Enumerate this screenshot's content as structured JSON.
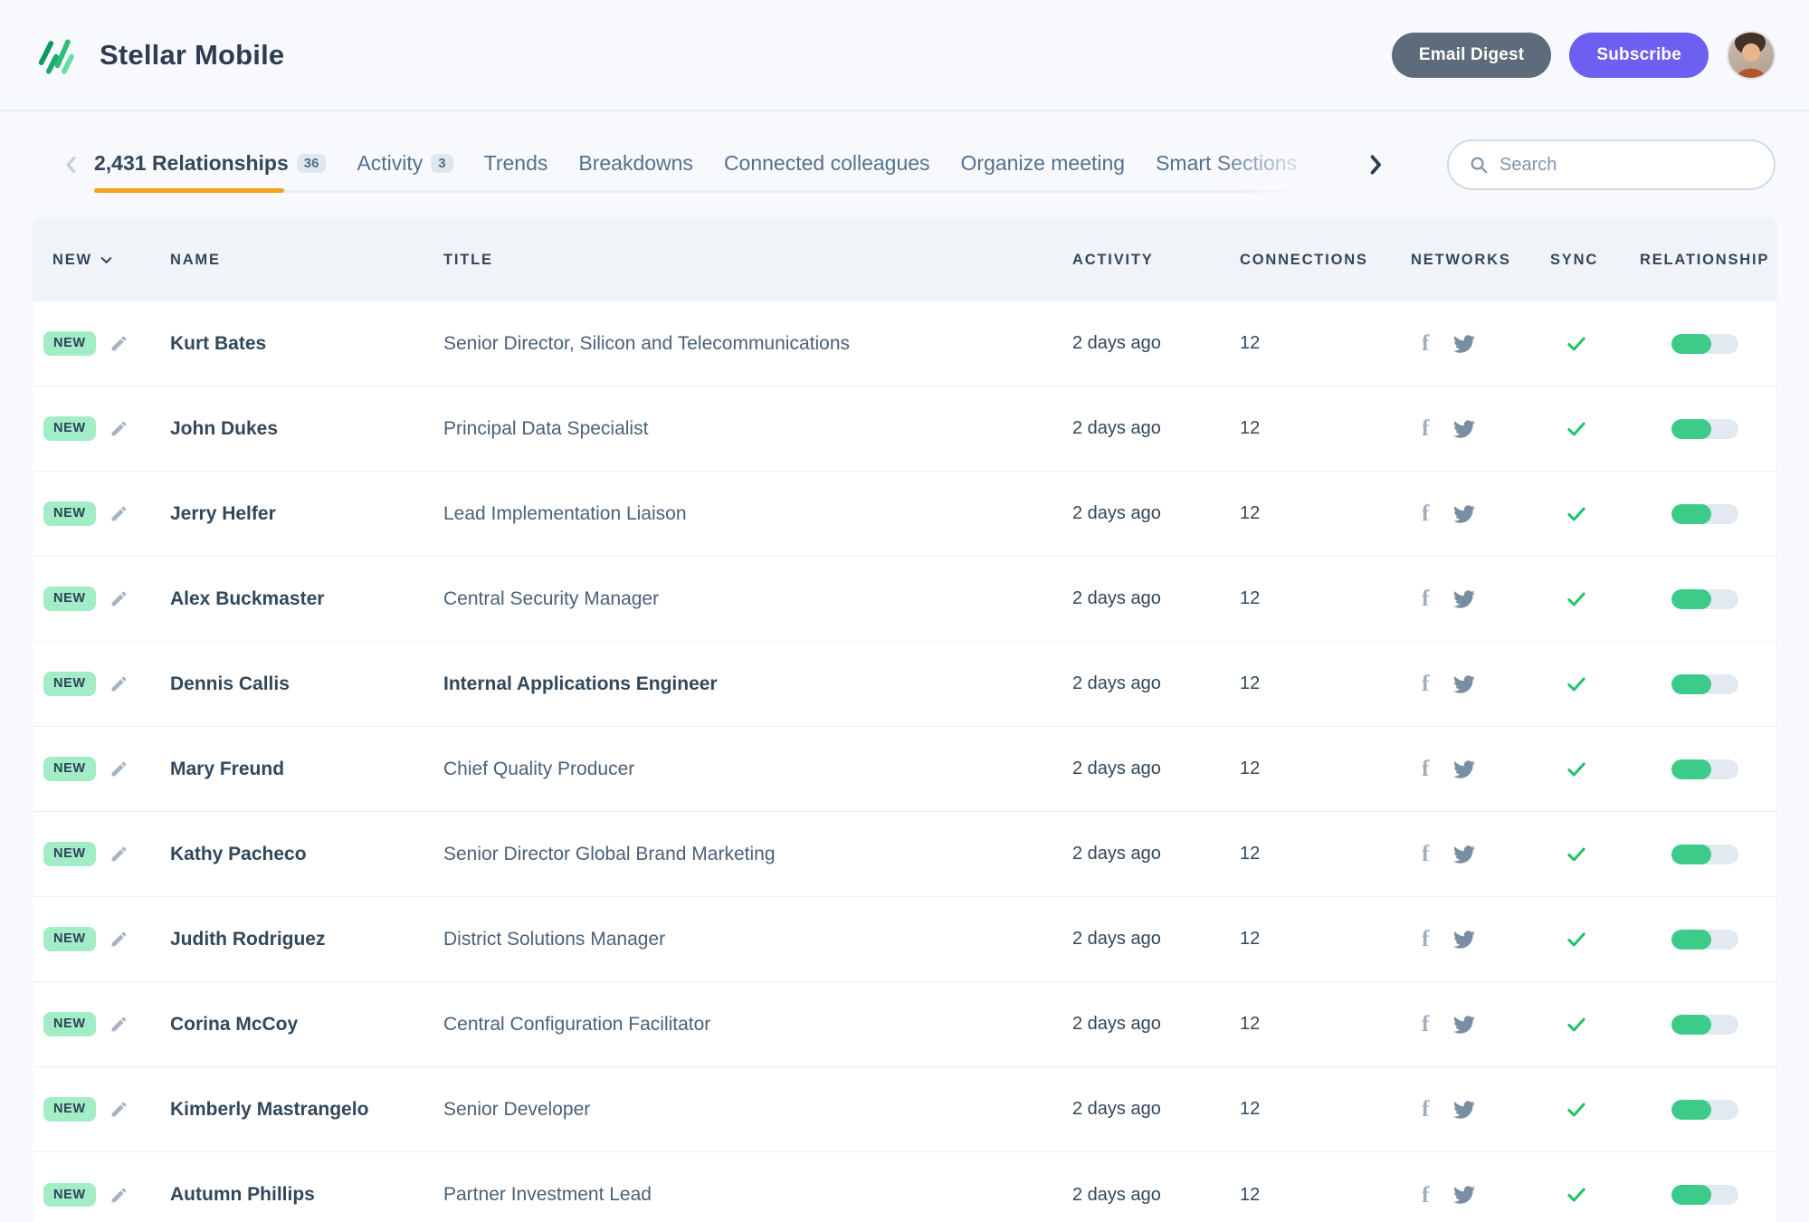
{
  "app": {
    "title": "Stellar Mobile"
  },
  "header": {
    "email_digest_label": "Email Digest",
    "subscribe_label": "Subscribe"
  },
  "tabs": [
    {
      "label": "2,431 Relationships",
      "badge": "36",
      "active": true
    },
    {
      "label": "Activity",
      "badge": "3",
      "active": false
    },
    {
      "label": "Trends",
      "active": false
    },
    {
      "label": "Breakdowns",
      "active": false
    },
    {
      "label": "Connected colleagues",
      "active": false
    },
    {
      "label": "Organize meeting",
      "active": false
    },
    {
      "label": "Smart Sections",
      "active": false
    }
  ],
  "search": {
    "placeholder": "Search"
  },
  "table": {
    "columns": [
      "NEW",
      "NAME",
      "TITLE",
      "ACTIVITY",
      "CONNECTIONS",
      "NETWORKS",
      "SYNC",
      "RELATIONSHIP"
    ],
    "rows": [
      {
        "badge": "NEW",
        "name": "Kurt Bates",
        "title": "Senior Director, Silicon and Telecommunications",
        "title_bold": false,
        "activity": "2 days ago",
        "connections": "12",
        "networks": [
          "facebook",
          "twitter"
        ],
        "synced": true,
        "relationship_percent": 60
      },
      {
        "badge": "NEW",
        "name": "John Dukes",
        "title": "Principal Data Specialist",
        "title_bold": false,
        "activity": "2 days ago",
        "connections": "12",
        "networks": [
          "facebook",
          "twitter"
        ],
        "synced": true,
        "relationship_percent": 60
      },
      {
        "badge": "NEW",
        "name": "Jerry Helfer",
        "title": "Lead Implementation Liaison",
        "title_bold": false,
        "activity": "2 days ago",
        "connections": "12",
        "networks": [
          "facebook",
          "twitter"
        ],
        "synced": true,
        "relationship_percent": 60
      },
      {
        "badge": "NEW",
        "name": "Alex Buckmaster",
        "title": "Central Security Manager",
        "title_bold": false,
        "activity": "2 days ago",
        "connections": "12",
        "networks": [
          "facebook",
          "twitter"
        ],
        "synced": true,
        "relationship_percent": 60
      },
      {
        "badge": "NEW",
        "name": "Dennis Callis",
        "title": "Internal Applications Engineer",
        "title_bold": true,
        "activity": "2 days ago",
        "connections": "12",
        "networks": [
          "facebook",
          "twitter"
        ],
        "synced": true,
        "relationship_percent": 60
      },
      {
        "badge": "NEW",
        "name": "Mary Freund",
        "title": "Chief Quality Producer",
        "title_bold": false,
        "activity": "2 days ago",
        "connections": "12",
        "networks": [
          "facebook",
          "twitter"
        ],
        "synced": true,
        "relationship_percent": 60
      },
      {
        "badge": "NEW",
        "name": "Kathy Pacheco",
        "title": "Senior Director Global Brand Marketing",
        "title_bold": false,
        "activity": "2 days ago",
        "connections": "12",
        "networks": [
          "facebook",
          "twitter"
        ],
        "synced": true,
        "relationship_percent": 60
      },
      {
        "badge": "NEW",
        "name": "Judith Rodriguez",
        "title": "District Solutions Manager",
        "title_bold": false,
        "activity": "2 days ago",
        "connections": "12",
        "networks": [
          "facebook",
          "twitter"
        ],
        "synced": true,
        "relationship_percent": 60
      },
      {
        "badge": "NEW",
        "name": "Corina McCoy",
        "title": "Central Configuration Facilitator",
        "title_bold": false,
        "activity": "2 days ago",
        "connections": "12",
        "networks": [
          "facebook",
          "twitter"
        ],
        "synced": true,
        "relationship_percent": 60
      },
      {
        "badge": "NEW",
        "name": "Kimberly Mastrangelo",
        "title": "Senior Developer",
        "title_bold": false,
        "activity": "2 days ago",
        "connections": "12",
        "networks": [
          "facebook",
          "twitter"
        ],
        "synced": true,
        "relationship_percent": 60
      },
      {
        "badge": "NEW",
        "name": "Autumn Phillips",
        "title": "Partner Investment Lead",
        "title_bold": false,
        "activity": "2 days ago",
        "connections": "12",
        "networks": [
          "facebook",
          "twitter"
        ],
        "synced": true,
        "relationship_percent": 60
      }
    ]
  },
  "colors": {
    "accent_orange": "#f5a31d",
    "brand_green": "#23b877",
    "new_badge_bg": "#a2ecc6",
    "subscribe_purple": "#6c5ff2",
    "email_digest_slate": "#5d6b7a",
    "sync_check_green": "#21c269",
    "relationship_fill_green": "#3dcb8a"
  }
}
